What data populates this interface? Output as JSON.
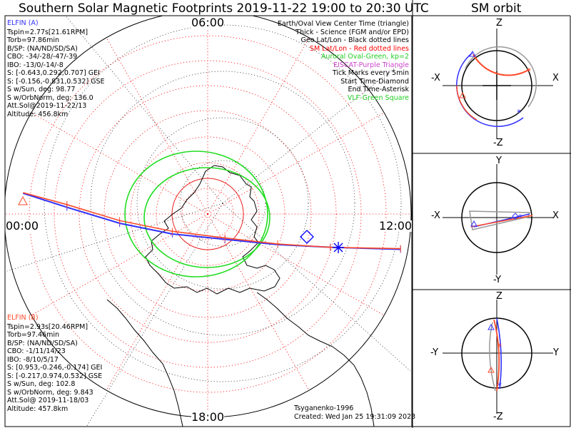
{
  "title": "Southern Solar Magnetic Footprints 2019-11-22 19:00 to 20:30 UTC",
  "orbit_title": "SM orbit",
  "elfin_a": {
    "name": "ELFIN (A)",
    "lines": [
      "Tspin=2.77s[21.61RPM]",
      "Torb=97.86min",
      "B/SP: (NA/ND/SD/SA)",
      "CBO: -34/-28/-47/-39",
      "IBO: -13/0/-14/-8",
      "S: [-0.643,0.292,0.707] GEI",
      "S: [-0.156,-0.831,0.532] GSE",
      "S w/Sun, deg: 98.77",
      "S w/OrbNorm, deg: 136.0",
      "Att.Sol@2019-11-22/13",
      "Altitude: 456.8km"
    ],
    "color": "#3030ff"
  },
  "elfin_b": {
    "name": "ELFIN (B)",
    "lines": [
      "Tspin=2.93s[20.46RPM]",
      "Torb=97.46min",
      "B/SP: (NA/ND/SD/SA)",
      "CBO: -1/11/14/23",
      "IBO: -8/10/5/17",
      "S: [0.953,-0.246,-0.174] GEI",
      "S: [-0.217,0.974,0.532] GSE",
      "S w/Sun, deg: 102.8",
      "S w/OrbNorm, deg: 9.843",
      "Att.Sol@ 2019-11-18/03",
      "Altitude: 457.8km"
    ],
    "color": "#ff4a2a"
  },
  "legend": [
    {
      "text": "Earth/Oval View Center Time (triangle)",
      "color": "#000000"
    },
    {
      "text": "Thick - Science (FGM and/or EPD)",
      "color": "#000000"
    },
    {
      "text": "Geo Lat/Lon - Black dotted lines",
      "color": "#000000"
    },
    {
      "text": "SM Lat/Lon - Red dotted lines",
      "color": "#ff0000"
    },
    {
      "text": "Auroral Oval-Green, kp=2",
      "color": "#22cc22"
    },
    {
      "text": "EISCAT-Purple Triangle",
      "color": "#cc44cc"
    },
    {
      "text": "Tick Marks every 5min",
      "color": "#000000"
    },
    {
      "text": "Start Time-Diamond",
      "color": "#000000"
    },
    {
      "text": "End Time-Asterisk",
      "color": "#000000"
    },
    {
      "text": "VLF-Green Square",
      "color": "#22cc22"
    }
  ],
  "mlt_labels": {
    "top": "06:00",
    "left": "00:00",
    "right": "12:00",
    "bottom": "18:00"
  },
  "footer": {
    "model": "Tsyganenko-1996",
    "created": "Created: Wed Jan 25 19:31:09 2023"
  },
  "panels": [
    {
      "top": "Z",
      "bottom": "-Z",
      "left": "-X",
      "right": "X"
    },
    {
      "top": "Y",
      "bottom": "-Y",
      "left": "-X",
      "right": "X"
    },
    {
      "top": "Z",
      "bottom": "-Z",
      "left": "-Y",
      "right": "Y"
    }
  ],
  "chart_data": {
    "type": "polar footprint map",
    "hemisphere": "south",
    "coordinate_system": "SM",
    "center_latitude_deg": -90,
    "latitude_circle_step_deg": 10,
    "mlt_meridians": [
      "00:00",
      "06:00",
      "12:00",
      "18:00"
    ],
    "series": [
      {
        "name": "ELFIN (A)",
        "color": "#3030ff",
        "track": [
          [
            0.5,
            57.5
          ],
          [
            3,
            68
          ],
          [
            6,
            80
          ],
          [
            9,
            88
          ],
          [
            12,
            92
          ],
          [
            15,
            96
          ],
          [
            18,
            98
          ],
          [
            22,
            99.5
          ]
        ]
      },
      {
        "name": "ELFIN (B)",
        "color": "#ff4a2a",
        "track": [
          [
            0.5,
            57.0
          ],
          [
            3,
            66
          ],
          [
            6,
            78
          ],
          [
            9,
            86
          ],
          [
            12,
            91
          ],
          [
            15,
            95.5
          ],
          [
            18,
            98
          ],
          [
            22,
            99
          ]
        ]
      }
    ]
  }
}
